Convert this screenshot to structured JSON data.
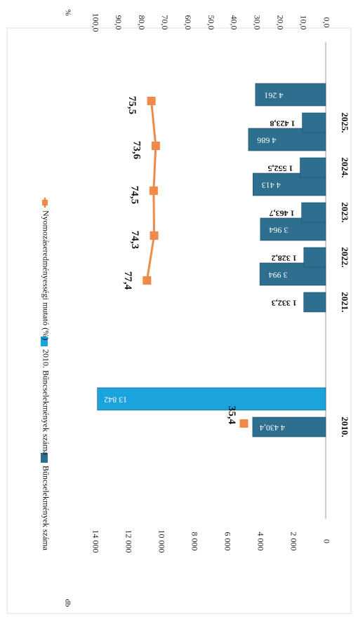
{
  "chart_data": {
    "type": "bar",
    "categories": [
      "2010.",
      "2021.",
      "2022.",
      "2023.",
      "2024.",
      "2025."
    ],
    "series": [
      {
        "name": "Bűncselekmények száma",
        "kind": "bar",
        "axis": "left",
        "color": "#2e6e8e",
        "values": [
          4430.4,
          1332.3,
          1328.2,
          1463.7,
          1552.5,
          1423.8
        ],
        "labels": [
          "4 430,4",
          "1 332,3",
          "1 328,2",
          "1 463,7",
          "1 552,5",
          "1 423,8"
        ]
      },
      {
        "name": "2010. Bűncselekmények száma",
        "kind": "bar",
        "axis": "left",
        "color": "#1aa3dd",
        "values": [
          13842,
          3994,
          3964,
          4413,
          4686,
          4261
        ],
        "labels": [
          "13 842",
          "3 994",
          "3 964",
          "4 413",
          "4 686",
          "4 261"
        ]
      },
      {
        "name": "Nyomozáseredményességi mutató (%)",
        "kind": "line",
        "axis": "right",
        "color": "#f08a4b",
        "values": [
          35.4,
          77.4,
          74.3,
          74.5,
          73.6,
          75.5
        ],
        "labels": [
          "35,4",
          "77,4",
          "74,3",
          "74,5",
          "73,6",
          "75,5"
        ]
      }
    ],
    "left_axis": {
      "unit": "db",
      "ylim": [
        0,
        14000
      ],
      "ticks": [
        "0",
        "2 000",
        "4 000",
        "6 000",
        "8 000",
        "10 000",
        "12 000",
        "14 000"
      ]
    },
    "right_axis": {
      "unit": "%",
      "ylim": [
        0,
        100
      ],
      "ticks": [
        "0,0",
        "10,0",
        "20,0",
        "30,0",
        "40,0",
        "50,0",
        "60,0",
        "70,0",
        "80,0",
        "90,0",
        "100,0"
      ]
    },
    "legend_position": "top",
    "orientation": "rotated 90° clockwise"
  }
}
